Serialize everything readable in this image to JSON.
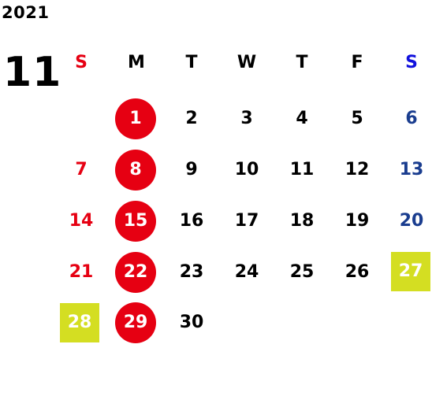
{
  "year": "2021",
  "month": "11",
  "weekdays": [
    "S",
    "M",
    "T",
    "W",
    "T",
    "F",
    "S"
  ],
  "days": [
    "1",
    "2",
    "3",
    "4",
    "5",
    "6",
    "7",
    "8",
    "9",
    "10",
    "11",
    "12",
    "13",
    "14",
    "15",
    "16",
    "17",
    "18",
    "19",
    "20",
    "21",
    "22",
    "23",
    "24",
    "25",
    "26",
    "27",
    "28",
    "29",
    "30"
  ],
  "colors": {
    "sunday": "#e60012",
    "saturday": "#1a3d8f",
    "holiday_highlight": "#d4de22",
    "monday_circle": "#e60012"
  },
  "highlighted_days": [
    "27",
    "28"
  ]
}
